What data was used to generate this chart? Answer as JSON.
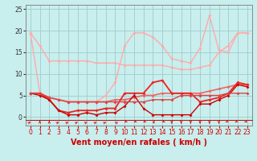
{
  "background_color": "#c8eeed",
  "grid_color": "#a0cccc",
  "xlabel": "Vent moyen/en rafales ( km/h )",
  "xlim": [
    -0.5,
    23.5
  ],
  "ylim": [
    -2,
    26
  ],
  "yticks": [
    0,
    5,
    10,
    15,
    20,
    25
  ],
  "xticks": [
    0,
    1,
    2,
    3,
    4,
    5,
    6,
    7,
    8,
    9,
    10,
    11,
    12,
    13,
    14,
    15,
    16,
    17,
    18,
    19,
    20,
    21,
    22,
    23
  ],
  "lines": [
    {
      "x": [
        0,
        1,
        2,
        3,
        4,
        5,
        6,
        7,
        8,
        9,
        10,
        11,
        12,
        13,
        14,
        15,
        16,
        17,
        18,
        19,
        20,
        21,
        22,
        23
      ],
      "y": [
        19.5,
        16.5,
        13.0,
        13.0,
        13.0,
        13.0,
        13.0,
        12.5,
        12.5,
        12.5,
        12.0,
        12.0,
        12.0,
        12.0,
        12.0,
        11.5,
        11.0,
        11.0,
        11.5,
        12.0,
        15.0,
        16.5,
        19.5,
        19.5
      ],
      "color": "#ffaaaa",
      "lw": 1.0,
      "marker": "D",
      "ms": 2.0
    },
    {
      "x": [
        0,
        1,
        2,
        3,
        4,
        5,
        6,
        7,
        8,
        9,
        10,
        11,
        12,
        13,
        14,
        15,
        16,
        17,
        18,
        19,
        20,
        21,
        22,
        23
      ],
      "y": [
        19.5,
        5.5,
        4.5,
        4.0,
        3.5,
        3.5,
        3.5,
        3.5,
        5.0,
        8.0,
        16.5,
        19.5,
        19.5,
        18.5,
        16.5,
        13.5,
        13.0,
        12.5,
        16.0,
        23.5,
        15.5,
        15.0,
        19.5,
        19.5
      ],
      "color": "#ffaaaa",
      "lw": 1.0,
      "marker": "D",
      "ms": 2.0
    },
    {
      "x": [
        0,
        1,
        2,
        3,
        4,
        5,
        6,
        7,
        8,
        9,
        10,
        11,
        12,
        13,
        14,
        15,
        16,
        17,
        18,
        19,
        20,
        21,
        22,
        23
      ],
      "y": [
        5.5,
        5.5,
        4.5,
        4.0,
        3.5,
        3.5,
        3.5,
        3.5,
        3.5,
        4.0,
        4.0,
        4.5,
        5.0,
        5.0,
        5.5,
        5.5,
        5.5,
        5.5,
        5.5,
        6.0,
        6.5,
        7.0,
        7.5,
        7.5
      ],
      "color": "#ee6666",
      "lw": 1.2,
      "marker": "D",
      "ms": 2.0
    },
    {
      "x": [
        0,
        1,
        2,
        3,
        4,
        5,
        6,
        7,
        8,
        9,
        10,
        11,
        12,
        13,
        14,
        15,
        16,
        17,
        18,
        19,
        20,
        21,
        22,
        23
      ],
      "y": [
        5.5,
        5.5,
        4.0,
        1.5,
        1.0,
        1.5,
        1.5,
        1.5,
        2.0,
        2.0,
        5.5,
        5.5,
        5.5,
        8.0,
        8.5,
        5.5,
        5.5,
        5.5,
        3.5,
        4.0,
        4.5,
        5.5,
        8.0,
        7.5
      ],
      "color": "#ee2222",
      "lw": 1.3,
      "marker": "D",
      "ms": 2.0
    },
    {
      "x": [
        0,
        1,
        2,
        3,
        4,
        5,
        6,
        7,
        8,
        9,
        10,
        11,
        12,
        13,
        14,
        15,
        16,
        17,
        18,
        19,
        20,
        21,
        22,
        23
      ],
      "y": [
        5.5,
        5.0,
        4.0,
        1.5,
        0.5,
        0.5,
        1.0,
        0.5,
        1.0,
        1.0,
        2.5,
        5.0,
        2.0,
        0.5,
        0.5,
        0.5,
        0.5,
        0.5,
        3.0,
        3.0,
        4.0,
        5.0,
        7.5,
        7.0
      ],
      "color": "#cc0000",
      "lw": 1.0,
      "marker": "D",
      "ms": 2.0
    },
    {
      "x": [
        0,
        1,
        2,
        3,
        4,
        5,
        6,
        7,
        8,
        9,
        10,
        11,
        12,
        13,
        14,
        15,
        16,
        17,
        18,
        19,
        20,
        21,
        22,
        23
      ],
      "y": [
        5.5,
        5.5,
        4.5,
        4.0,
        3.5,
        3.5,
        3.5,
        3.5,
        3.5,
        3.5,
        3.5,
        3.5,
        3.5,
        4.0,
        4.0,
        4.0,
        5.0,
        5.0,
        5.0,
        5.0,
        5.0,
        5.5,
        5.5,
        5.5
      ],
      "color": "#dd4444",
      "lw": 1.0,
      "marker": "D",
      "ms": 2.0
    }
  ],
  "arrow_directions": [
    45,
    90,
    90,
    45,
    45,
    45,
    45,
    45,
    45,
    135,
    225,
    225,
    225,
    180,
    225,
    270,
    270,
    270,
    270,
    270,
    270,
    315,
    315,
    315
  ],
  "arrow_color": "#cc0000",
  "xlabel_color": "#cc0000",
  "xlabel_fontsize": 7.0,
  "tick_fontsize": 5.5
}
